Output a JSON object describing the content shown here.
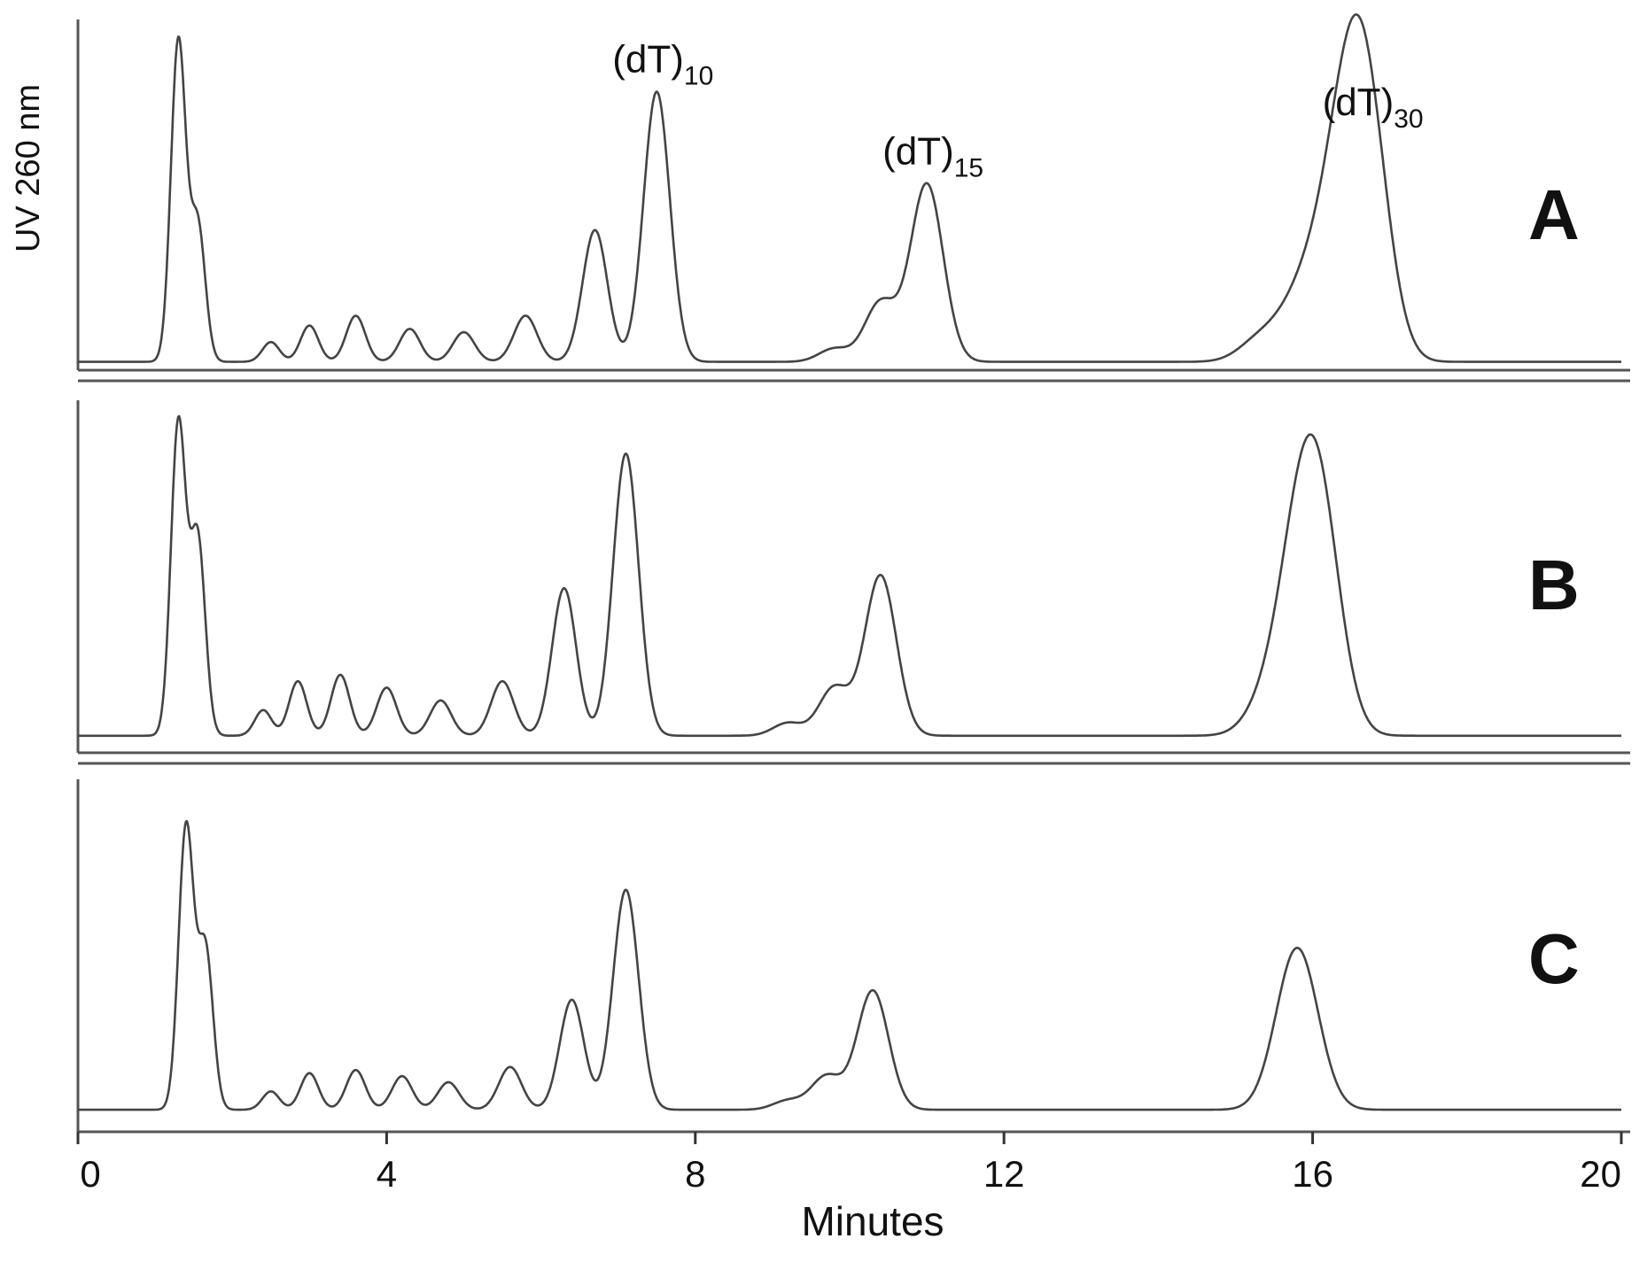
{
  "chart_data": {
    "type": "line",
    "title": "",
    "xlabel": "Minutes",
    "ylabel": "UV 260 nm",
    "xlim": [
      0,
      20
    ],
    "x_ticks": [
      0,
      4,
      8,
      12,
      16,
      20
    ],
    "x_tick_labels": [
      "0",
      "4",
      "8",
      "12",
      "16",
      "20"
    ],
    "grid": false,
    "line_color": "#444444",
    "series": [
      {
        "name": "A",
        "baseline": 0.02,
        "peaks": [
          {
            "t": 1.3,
            "h": 0.97
          },
          {
            "t": 1.55,
            "h": 0.42
          },
          {
            "t": 2.5,
            "h": 0.06
          },
          {
            "t": 3.0,
            "h": 0.11
          },
          {
            "t": 3.6,
            "h": 0.14
          },
          {
            "t": 4.3,
            "h": 0.1
          },
          {
            "t": 5.0,
            "h": 0.09
          },
          {
            "t": 5.8,
            "h": 0.14
          },
          {
            "t": 6.7,
            "h": 0.4
          },
          {
            "t": 7.5,
            "h": 0.82
          },
          {
            "t": 9.8,
            "h": 0.04
          },
          {
            "t": 10.4,
            "h": 0.18
          },
          {
            "t": 11.0,
            "h": 0.54
          },
          {
            "t": 15.3,
            "h": 0.06
          },
          {
            "t": 15.7,
            "h": 0.08
          },
          {
            "t": 16.0,
            "h": 0.18
          },
          {
            "t": 16.4,
            "h": 0.5
          },
          {
            "t": 16.7,
            "h": 0.69
          }
        ],
        "peak_labels": [
          {
            "text": "(dT)",
            "sub": "10",
            "t": 7.5
          },
          {
            "text": "(dT)",
            "sub": "15",
            "t": 11.0
          },
          {
            "text": "(dT)",
            "sub": "30",
            "t": 16.7
          }
        ]
      },
      {
        "name": "B",
        "baseline": 0.02,
        "peaks": [
          {
            "t": 1.3,
            "h": 0.97
          },
          {
            "t": 1.55,
            "h": 0.62
          },
          {
            "t": 2.4,
            "h": 0.08
          },
          {
            "t": 2.85,
            "h": 0.17
          },
          {
            "t": 3.4,
            "h": 0.19
          },
          {
            "t": 4.0,
            "h": 0.15
          },
          {
            "t": 4.7,
            "h": 0.11
          },
          {
            "t": 5.5,
            "h": 0.17
          },
          {
            "t": 6.3,
            "h": 0.46
          },
          {
            "t": 7.1,
            "h": 0.88
          },
          {
            "t": 9.2,
            "h": 0.04
          },
          {
            "t": 9.8,
            "h": 0.15
          },
          {
            "t": 10.4,
            "h": 0.5
          },
          {
            "t": 15.4,
            "h": 0.09
          },
          {
            "t": 15.8,
            "h": 0.46
          },
          {
            "t": 16.1,
            "h": 0.62
          }
        ]
      },
      {
        "name": "C",
        "baseline": 0.02,
        "peaks": [
          {
            "t": 1.4,
            "h": 0.92
          },
          {
            "t": 1.65,
            "h": 0.53
          },
          {
            "t": 2.5,
            "h": 0.06
          },
          {
            "t": 3.0,
            "h": 0.12
          },
          {
            "t": 3.6,
            "h": 0.13
          },
          {
            "t": 4.2,
            "h": 0.11
          },
          {
            "t": 4.8,
            "h": 0.09
          },
          {
            "t": 5.6,
            "h": 0.14
          },
          {
            "t": 6.4,
            "h": 0.36
          },
          {
            "t": 7.1,
            "h": 0.72
          },
          {
            "t": 9.2,
            "h": 0.03
          },
          {
            "t": 9.7,
            "h": 0.11
          },
          {
            "t": 10.3,
            "h": 0.39
          },
          {
            "t": 15.8,
            "h": 0.53
          }
        ]
      }
    ]
  }
}
